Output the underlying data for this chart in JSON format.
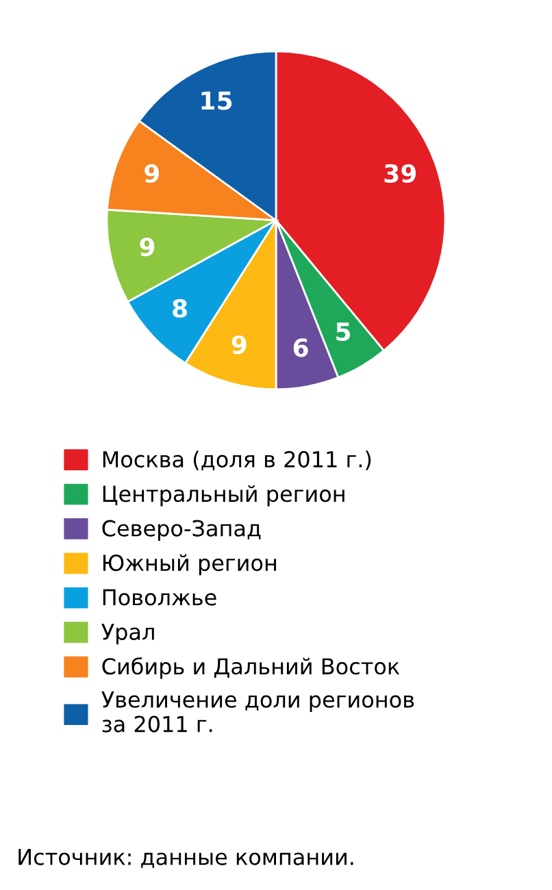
{
  "chart_data": {
    "type": "pie",
    "categories": [
      "Москва (доля в 2011 г.)",
      "Центральный регион",
      "Северо-Запад",
      "Южный регион",
      "Поволжье",
      "Урал",
      "Сибирь и Дальний Восток",
      "Увеличение доли регионов\nза 2011 г."
    ],
    "values": [
      39,
      5,
      6,
      9,
      8,
      9,
      9,
      15
    ],
    "colors": [
      "#e31e24",
      "#1fa85a",
      "#6a4c9c",
      "#fdb913",
      "#0aa0e0",
      "#8dc63f",
      "#f7821e",
      "#0f5ea8"
    ],
    "data_labels": true,
    "legend": "bottom",
    "annotations": [
      "Источник: данные компании."
    ]
  }
}
